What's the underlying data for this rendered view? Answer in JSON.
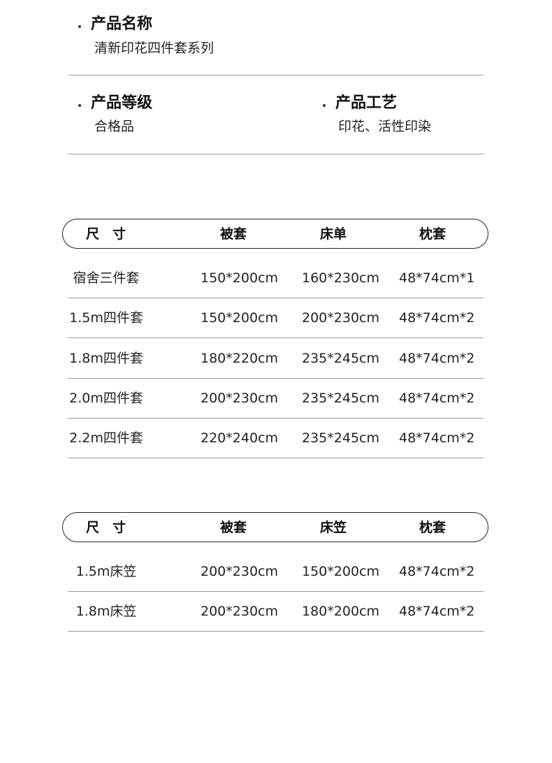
{
  "info": [
    {
      "title": "产品名称",
      "value": "清新印花四件套系列"
    },
    {
      "title": "产品等级",
      "value": "合格品"
    },
    {
      "title": "产品工艺",
      "value": "印花、活性印染"
    }
  ],
  "table1": {
    "headers": [
      "尺　寸",
      "被套",
      "床单",
      "枕套"
    ],
    "rows": [
      [
        "宿舍三件套",
        "150*200cm",
        "160*230cm",
        "48*74cm*1"
      ],
      [
        "1.5m四件套",
        "150*200cm",
        "200*230cm",
        "48*74cm*2"
      ],
      [
        "1.8m四件套",
        "180*220cm",
        "235*245cm",
        "48*74cm*2"
      ],
      [
        "2.0m四件套",
        "200*230cm",
        "235*245cm",
        "48*74cm*2"
      ],
      [
        "2.2m四件套",
        "220*240cm",
        "235*245cm",
        "48*74cm*2"
      ]
    ]
  },
  "table2": {
    "headers": [
      "尺　寸",
      "被套",
      "床笠",
      "枕套"
    ],
    "rows": [
      [
        "1.5m床笠",
        "200*230cm",
        "150*200cm",
        "48*74cm*2"
      ],
      [
        "1.8m床笠",
        "200*230cm",
        "180*200cm",
        "48*74cm*2"
      ]
    ]
  }
}
